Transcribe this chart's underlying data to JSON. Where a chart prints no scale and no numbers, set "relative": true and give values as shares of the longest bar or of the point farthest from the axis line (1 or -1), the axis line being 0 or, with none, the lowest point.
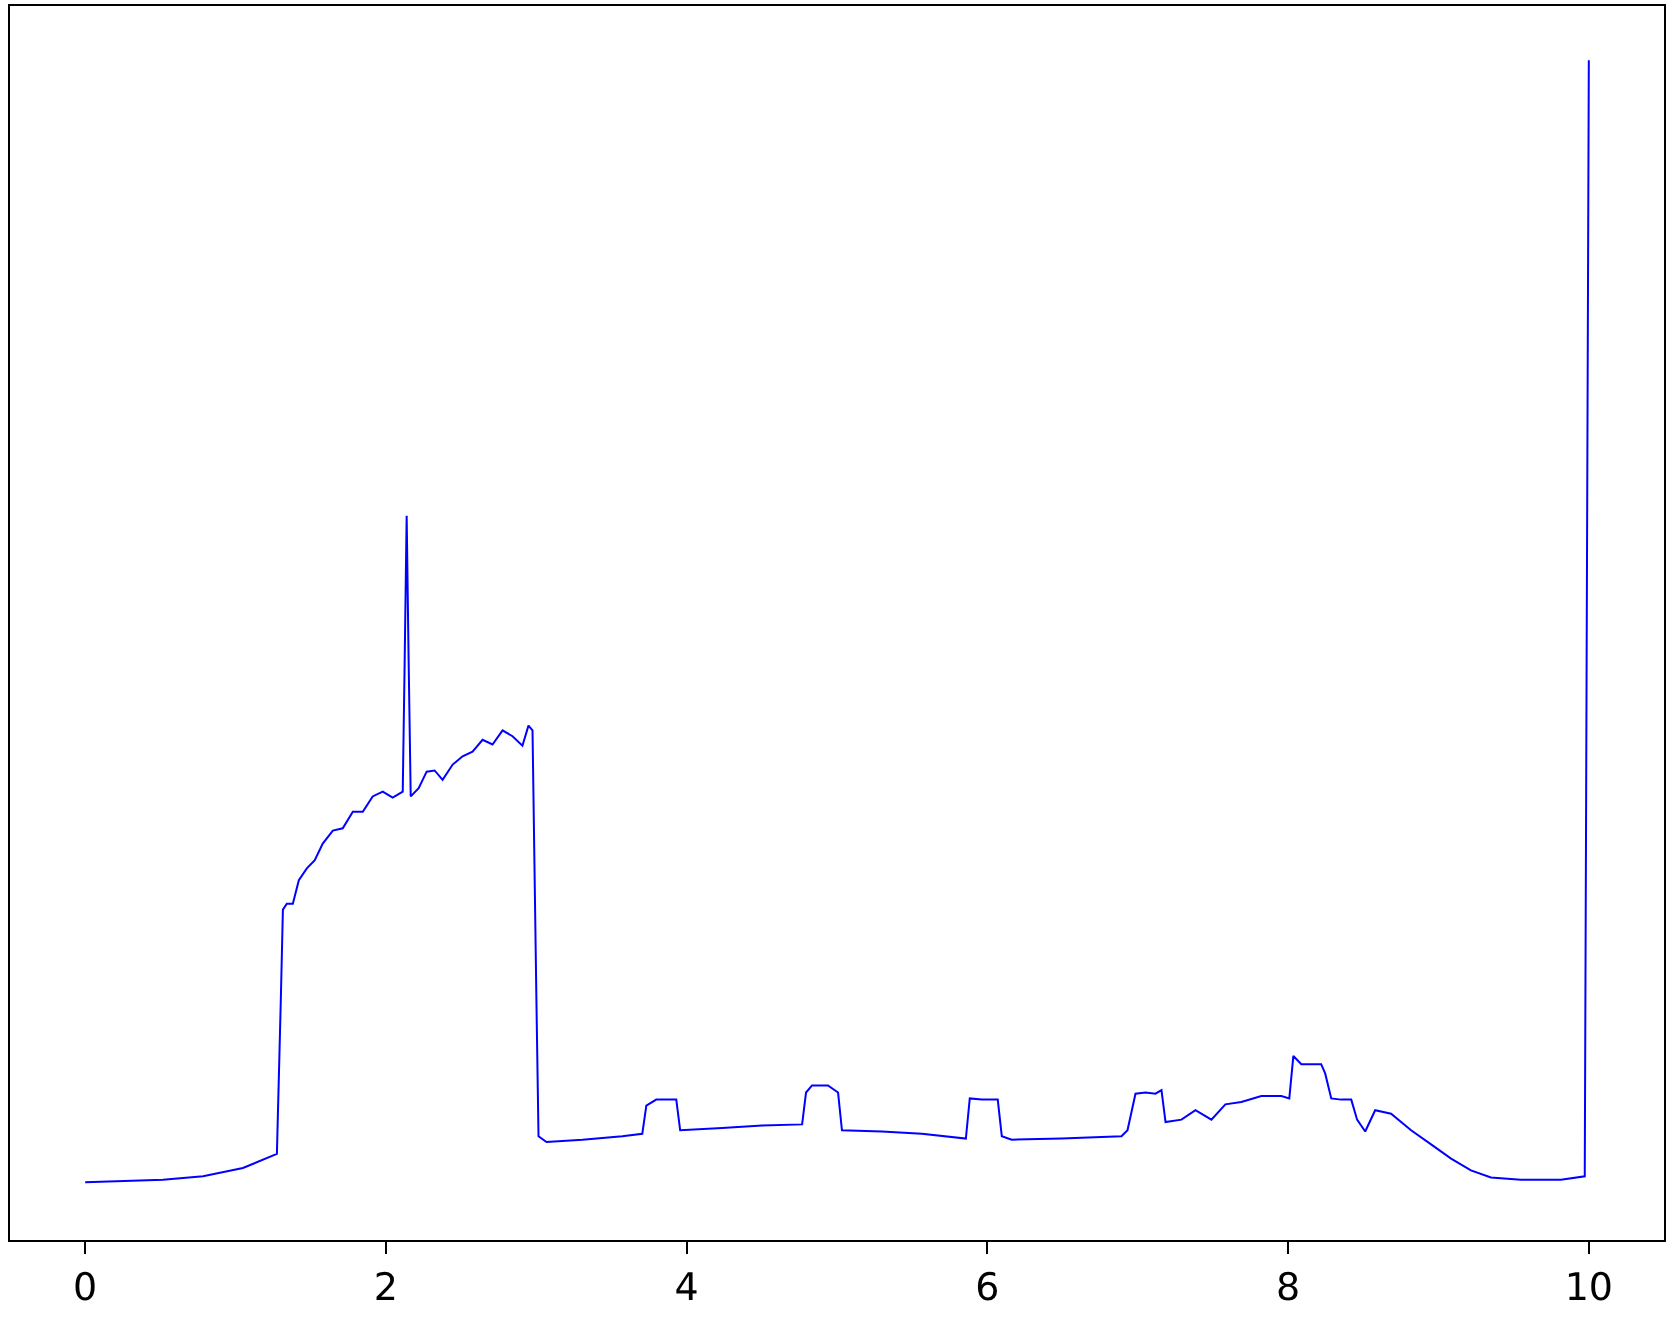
{
  "chart_data": {
    "type": "line",
    "relative": true,
    "xlim": [
      -0.5,
      10.5
    ],
    "xticks": [
      0,
      2,
      4,
      6,
      8,
      10
    ],
    "grid": false,
    "marker": "none",
    "line_style": "solid",
    "series": [
      {
        "color": "#0000ff",
        "x": [
          0.0,
          0.518,
          0.784,
          1.049,
          1.275,
          1.301,
          1.315,
          1.341,
          1.381,
          1.421,
          1.474,
          1.527,
          1.58,
          1.647,
          1.713,
          1.78,
          1.846,
          1.912,
          1.979,
          2.045,
          2.112,
          2.125,
          2.138,
          2.151,
          2.165,
          2.218,
          2.271,
          2.324,
          2.377,
          2.444,
          2.51,
          2.576,
          2.643,
          2.709,
          2.776,
          2.842,
          2.908,
          2.948,
          2.975,
          3.001,
          3.015,
          3.068,
          3.307,
          3.572,
          3.705,
          3.732,
          3.798,
          3.931,
          3.957,
          4.236,
          4.502,
          4.768,
          4.794,
          4.834,
          4.94,
          5.007,
          5.033,
          5.299,
          5.564,
          5.857,
          5.883,
          5.963,
          6.069,
          6.096,
          6.162,
          6.494,
          6.892,
          6.932,
          6.985,
          7.052,
          7.118,
          7.158,
          7.185,
          7.291,
          7.384,
          7.49,
          7.583,
          7.689,
          7.822,
          7.955,
          8.008,
          8.035,
          8.088,
          8.22,
          8.247,
          8.287,
          8.353,
          8.42,
          8.459,
          8.513,
          8.579,
          8.685,
          8.818,
          8.951,
          9.084,
          9.216,
          9.349,
          9.548,
          9.814,
          9.973,
          10.0
        ],
        "values": [
          0.049,
          0.051,
          0.054,
          0.061,
          0.073,
          0.203,
          0.28,
          0.285,
          0.285,
          0.305,
          0.315,
          0.322,
          0.336,
          0.347,
          0.349,
          0.363,
          0.363,
          0.376,
          0.38,
          0.375,
          0.38,
          0.492,
          0.614,
          0.492,
          0.376,
          0.383,
          0.397,
          0.398,
          0.39,
          0.403,
          0.41,
          0.414,
          0.424,
          0.42,
          0.432,
          0.427,
          0.419,
          0.436,
          0.432,
          0.203,
          0.088,
          0.083,
          0.085,
          0.088,
          0.09,
          0.114,
          0.119,
          0.119,
          0.093,
          0.095,
          0.097,
          0.098,
          0.125,
          0.131,
          0.131,
          0.125,
          0.093,
          0.092,
          0.09,
          0.086,
          0.12,
          0.119,
          0.119,
          0.088,
          0.085,
          0.086,
          0.088,
          0.093,
          0.124,
          0.125,
          0.124,
          0.127,
          0.1,
          0.102,
          0.11,
          0.102,
          0.115,
          0.117,
          0.122,
          0.122,
          0.12,
          0.156,
          0.149,
          0.149,
          0.141,
          0.12,
          0.119,
          0.119,
          0.102,
          0.092,
          0.11,
          0.107,
          0.093,
          0.081,
          0.069,
          0.059,
          0.053,
          0.051,
          0.051,
          0.054,
          1.0
        ]
      }
    ]
  }
}
